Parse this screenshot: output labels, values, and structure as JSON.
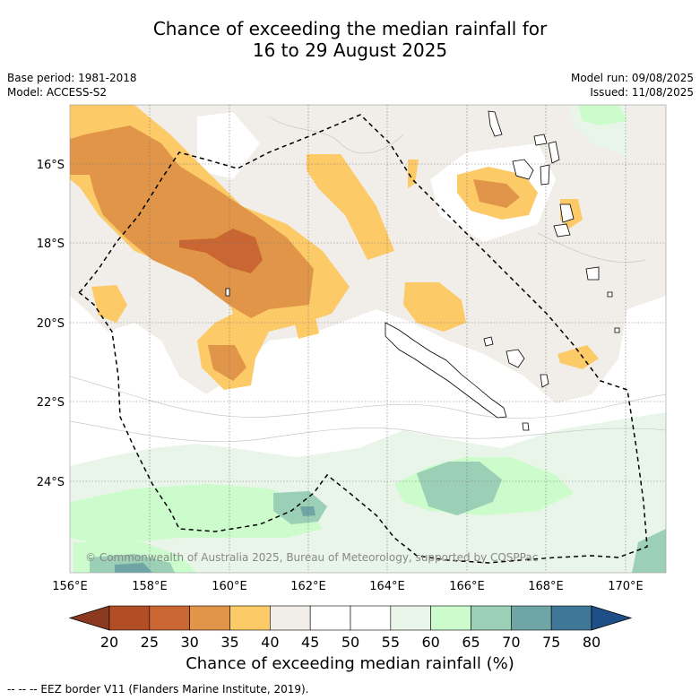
{
  "title_line1": "Chance of exceeding the median rainfall for",
  "title_line2": "16 to 29 August 2025",
  "base_period": "Base period: 1981-2018",
  "model": "Model: ACCESS-S2",
  "model_run": "Model run: 09/08/2025",
  "issued": "Issued: 11/08/2025",
  "copyright": "© Commonwealth of Australia 2025, Bureau of Meteorology, supported by COSPPac",
  "lon_labels": [
    "156°E",
    "158°E",
    "160°E",
    "162°E",
    "164°E",
    "166°E",
    "168°E",
    "170°E"
  ],
  "lat_labels": [
    "16°S",
    "18°S",
    "20°S",
    "22°S",
    "24°S"
  ],
  "colorbar": {
    "ticks": [
      "20",
      "25",
      "30",
      "35",
      "40",
      "45",
      "50",
      "55",
      "60",
      "65",
      "70",
      "75",
      "80"
    ],
    "colors": [
      "#8c3a1f",
      "#b24e25",
      "#c96632",
      "#e09548",
      "#fdca68",
      "#f1ede8",
      "#ffffff",
      "#ffffff",
      "#eaf5e9",
      "#ccfccc",
      "#9bd0b6",
      "#6fa5a5",
      "#3f7798",
      "#1f4f87"
    ],
    "label": "Chance of exceeding median rainfall (%)"
  },
  "legend_footnote": "-- -- -- EEZ border V11 (Flanders Marine Institute, 2019)."
}
